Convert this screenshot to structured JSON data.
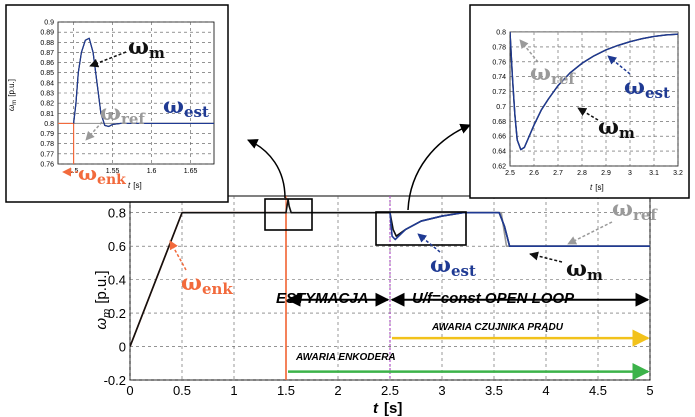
{
  "colors": {
    "omega_m": "#111111",
    "omega_ref": "#9a9a9a",
    "omega_est": "#1f3a93",
    "omega_enk": "#f26a3c",
    "awaria_enkodera": "#3cb34a",
    "awaria_czujnika": "#f2c21b",
    "grid": "#555555",
    "zoom_box": "#000000"
  },
  "chart_data": [
    {
      "id": "main",
      "type": "line",
      "xlabel_sym": "t",
      "xlabel_unit": "[s]",
      "ylabel_sym": "ω",
      "ylabel_sub": "m",
      "ylabel_unit": "[p.u.]",
      "xlim": [
        0,
        5
      ],
      "ylim": [
        -0.2,
        0.9
      ],
      "xticks": [
        0,
        0.5,
        1,
        1.5,
        2,
        2.5,
        3,
        3.5,
        4,
        4.5,
        5
      ],
      "xtick_labels": [
        "0",
        "0.5",
        "1",
        "1.5",
        "2",
        "2.5",
        "3",
        "3.5",
        "4",
        "4.5",
        "5"
      ],
      "yticks": [
        -0.2,
        0,
        0.2,
        0.4,
        0.6,
        0.8
      ],
      "ytick_labels": [
        "-0.2",
        "0",
        "0.2",
        "0.4",
        "0.6",
        "0.8"
      ],
      "grid": true,
      "series": [
        {
          "key": "omega_ref",
          "x": [
            0,
            0.5,
            3.57,
            3.62,
            5
          ],
          "y": [
            0,
            0.8,
            0.8,
            0.6,
            0.6
          ]
        },
        {
          "key": "omega_enk",
          "x": [
            0,
            0.5,
            1.5,
            1.5
          ],
          "y": [
            0,
            0.8,
            0.8,
            -0.2
          ]
        },
        {
          "key": "omega_m",
          "x": [
            0,
            0.5,
            1.5,
            1.51,
            1.52,
            1.53,
            1.55,
            2.5,
            2.53,
            2.56,
            2.65,
            2.8,
            3.0,
            3.2,
            3.55,
            3.6,
            3.65,
            5
          ],
          "y": [
            0,
            0.8,
            0.8,
            0.84,
            0.88,
            0.84,
            0.8,
            0.8,
            0.7,
            0.66,
            0.7,
            0.75,
            0.78,
            0.8,
            0.8,
            0.72,
            0.6,
            0.6
          ]
        },
        {
          "key": "omega_est",
          "x": [
            2.5,
            2.52,
            2.55,
            2.65,
            2.8,
            3.0,
            3.2,
            3.55,
            3.6,
            3.65,
            5
          ],
          "y": [
            0.8,
            0.66,
            0.64,
            0.7,
            0.75,
            0.78,
            0.8,
            0.8,
            0.72,
            0.6,
            0.6
          ]
        }
      ],
      "vlines": [
        {
          "x": 1.5,
          "color_key": "omega_enk"
        },
        {
          "x": 2.5,
          "color_key": "purple"
        }
      ],
      "annotations": {
        "estymacja": "ESTYMACJA",
        "open_loop": "U/f=const OPEN LOOP",
        "awaria_czujnika": "AWARIA CZUJNIKA PRĄDU",
        "awaria_enkodera": "AWARIA ENKODERA"
      },
      "arrows": {
        "estymacja": [
          1.5,
          2.5,
          0.28
        ],
        "open_loop": [
          2.5,
          5,
          0.28
        ],
        "awaria_czujnika": [
          2.5,
          5,
          0.05
        ],
        "awaria_enkodera": [
          1.5,
          5,
          -0.15
        ]
      },
      "labels": {
        "omega_enk": {
          "sym": "ω",
          "sub": "enk"
        },
        "omega_est": {
          "sym": "ω",
          "sub": "est"
        },
        "omega_ref": {
          "sym": "ω",
          "sub": "ref"
        },
        "omega_m": {
          "sym": "ω",
          "sub": "m"
        }
      }
    },
    {
      "id": "inset_left",
      "type": "line",
      "xlabel_sym": "t",
      "xlabel_unit": "[s]",
      "ylabel_sym": "ω",
      "ylabel_sub": "m",
      "ylabel_unit": "[p.u.]",
      "xlim": [
        1.48,
        1.68
      ],
      "ylim": [
        0.76,
        0.9
      ],
      "xticks": [
        1.5,
        1.55,
        1.6,
        1.65
      ],
      "xtick_labels": [
        "1.5",
        "1.55",
        "1.6",
        "1.65"
      ],
      "yticks": [
        0.76,
        0.77,
        0.78,
        0.79,
        0.8,
        0.81,
        0.82,
        0.83,
        0.84,
        0.85,
        0.86,
        0.87,
        0.88,
        0.89,
        0.9
      ],
      "ytick_labels": [
        "0.76",
        "0.77",
        "0.78",
        "0.79",
        "0.8",
        "0.81",
        "0.82",
        "0.83",
        "0.84",
        "0.85",
        "0.86",
        "0.87",
        "0.88",
        "0.89",
        "0.9"
      ],
      "grid": true,
      "series": [
        {
          "key": "omega_ref",
          "x": [
            1.48,
            1.68
          ],
          "y": [
            0.8,
            0.8
          ]
        },
        {
          "key": "omega_enk",
          "x": [
            1.48,
            1.5,
            1.5
          ],
          "y": [
            0.8,
            0.8,
            0.76
          ]
        },
        {
          "key": "omega_m",
          "x": [
            1.5,
            1.503,
            1.506,
            1.51,
            1.515,
            1.52,
            1.525,
            1.53,
            1.535,
            1.54,
            1.545,
            1.55,
            1.56,
            1.58,
            1.68
          ],
          "y": [
            0.8,
            0.82,
            0.85,
            0.87,
            0.882,
            0.884,
            0.87,
            0.84,
            0.81,
            0.798,
            0.797,
            0.799,
            0.8,
            0.8,
            0.8
          ]
        },
        {
          "key": "omega_est",
          "x": [
            1.5,
            1.503,
            1.506,
            1.51,
            1.515,
            1.52,
            1.525,
            1.53,
            1.535,
            1.54,
            1.545,
            1.55,
            1.56,
            1.58,
            1.68
          ],
          "y": [
            0.8,
            0.82,
            0.85,
            0.87,
            0.882,
            0.884,
            0.87,
            0.84,
            0.81,
            0.798,
            0.797,
            0.799,
            0.8,
            0.8,
            0.8
          ]
        }
      ],
      "labels": {
        "omega_m": {
          "sym": "ω",
          "sub": "m"
        },
        "omega_ref": {
          "sym": "ω",
          "sub": "ref"
        },
        "omega_est": {
          "sym": "ω",
          "sub": "est"
        },
        "omega_enk": {
          "sym": "ω",
          "sub": "enk"
        }
      }
    },
    {
      "id": "inset_right",
      "type": "line",
      "xlabel_sym": "t",
      "xlabel_unit": "[s]",
      "xlim": [
        2.5,
        3.2
      ],
      "ylim": [
        0.62,
        0.8
      ],
      "xticks": [
        2.5,
        2.6,
        2.7,
        2.8,
        2.9,
        3,
        3.1,
        3.2
      ],
      "xtick_labels": [
        "2.5",
        "2.6",
        "2.7",
        "2.8",
        "2.9",
        "3",
        "3.1",
        "3.2"
      ],
      "yticks": [
        0.62,
        0.64,
        0.66,
        0.68,
        0.7,
        0.72,
        0.74,
        0.76,
        0.78,
        0.8
      ],
      "ytick_labels": [
        "0.62",
        "0.64",
        "0.66",
        "0.68",
        "0.7",
        "0.72",
        "0.74",
        "0.76",
        "0.78",
        "0.8"
      ],
      "grid": true,
      "series": [
        {
          "key": "omega_ref",
          "x": [
            2.5,
            3.2
          ],
          "y": [
            0.8,
            0.8
          ]
        },
        {
          "key": "omega_m",
          "x": [
            2.5,
            2.51,
            2.52,
            2.53,
            2.545,
            2.56,
            2.58,
            2.6,
            2.63,
            2.66,
            2.7,
            2.75,
            2.8,
            2.85,
            2.9,
            2.95,
            3.0,
            3.05,
            3.1,
            3.15,
            3.2
          ],
          "y": [
            0.8,
            0.74,
            0.69,
            0.655,
            0.642,
            0.645,
            0.66,
            0.675,
            0.695,
            0.71,
            0.728,
            0.745,
            0.758,
            0.768,
            0.776,
            0.782,
            0.787,
            0.791,
            0.794,
            0.796,
            0.797
          ]
        },
        {
          "key": "omega_est",
          "x": [
            2.5,
            2.51,
            2.52,
            2.53,
            2.545,
            2.56,
            2.58,
            2.6,
            2.63,
            2.66,
            2.7,
            2.75,
            2.8,
            2.85,
            2.9,
            2.95,
            3.0,
            3.05,
            3.1,
            3.15,
            3.2
          ],
          "y": [
            0.8,
            0.74,
            0.69,
            0.655,
            0.642,
            0.645,
            0.66,
            0.675,
            0.695,
            0.71,
            0.728,
            0.745,
            0.758,
            0.768,
            0.776,
            0.782,
            0.787,
            0.791,
            0.794,
            0.796,
            0.797
          ]
        }
      ],
      "labels": {
        "omega_ref": {
          "sym": "ω",
          "sub": "ref"
        },
        "omega_est": {
          "sym": "ω",
          "sub": "est"
        },
        "omega_m": {
          "sym": "ω",
          "sub": "m"
        }
      }
    }
  ]
}
